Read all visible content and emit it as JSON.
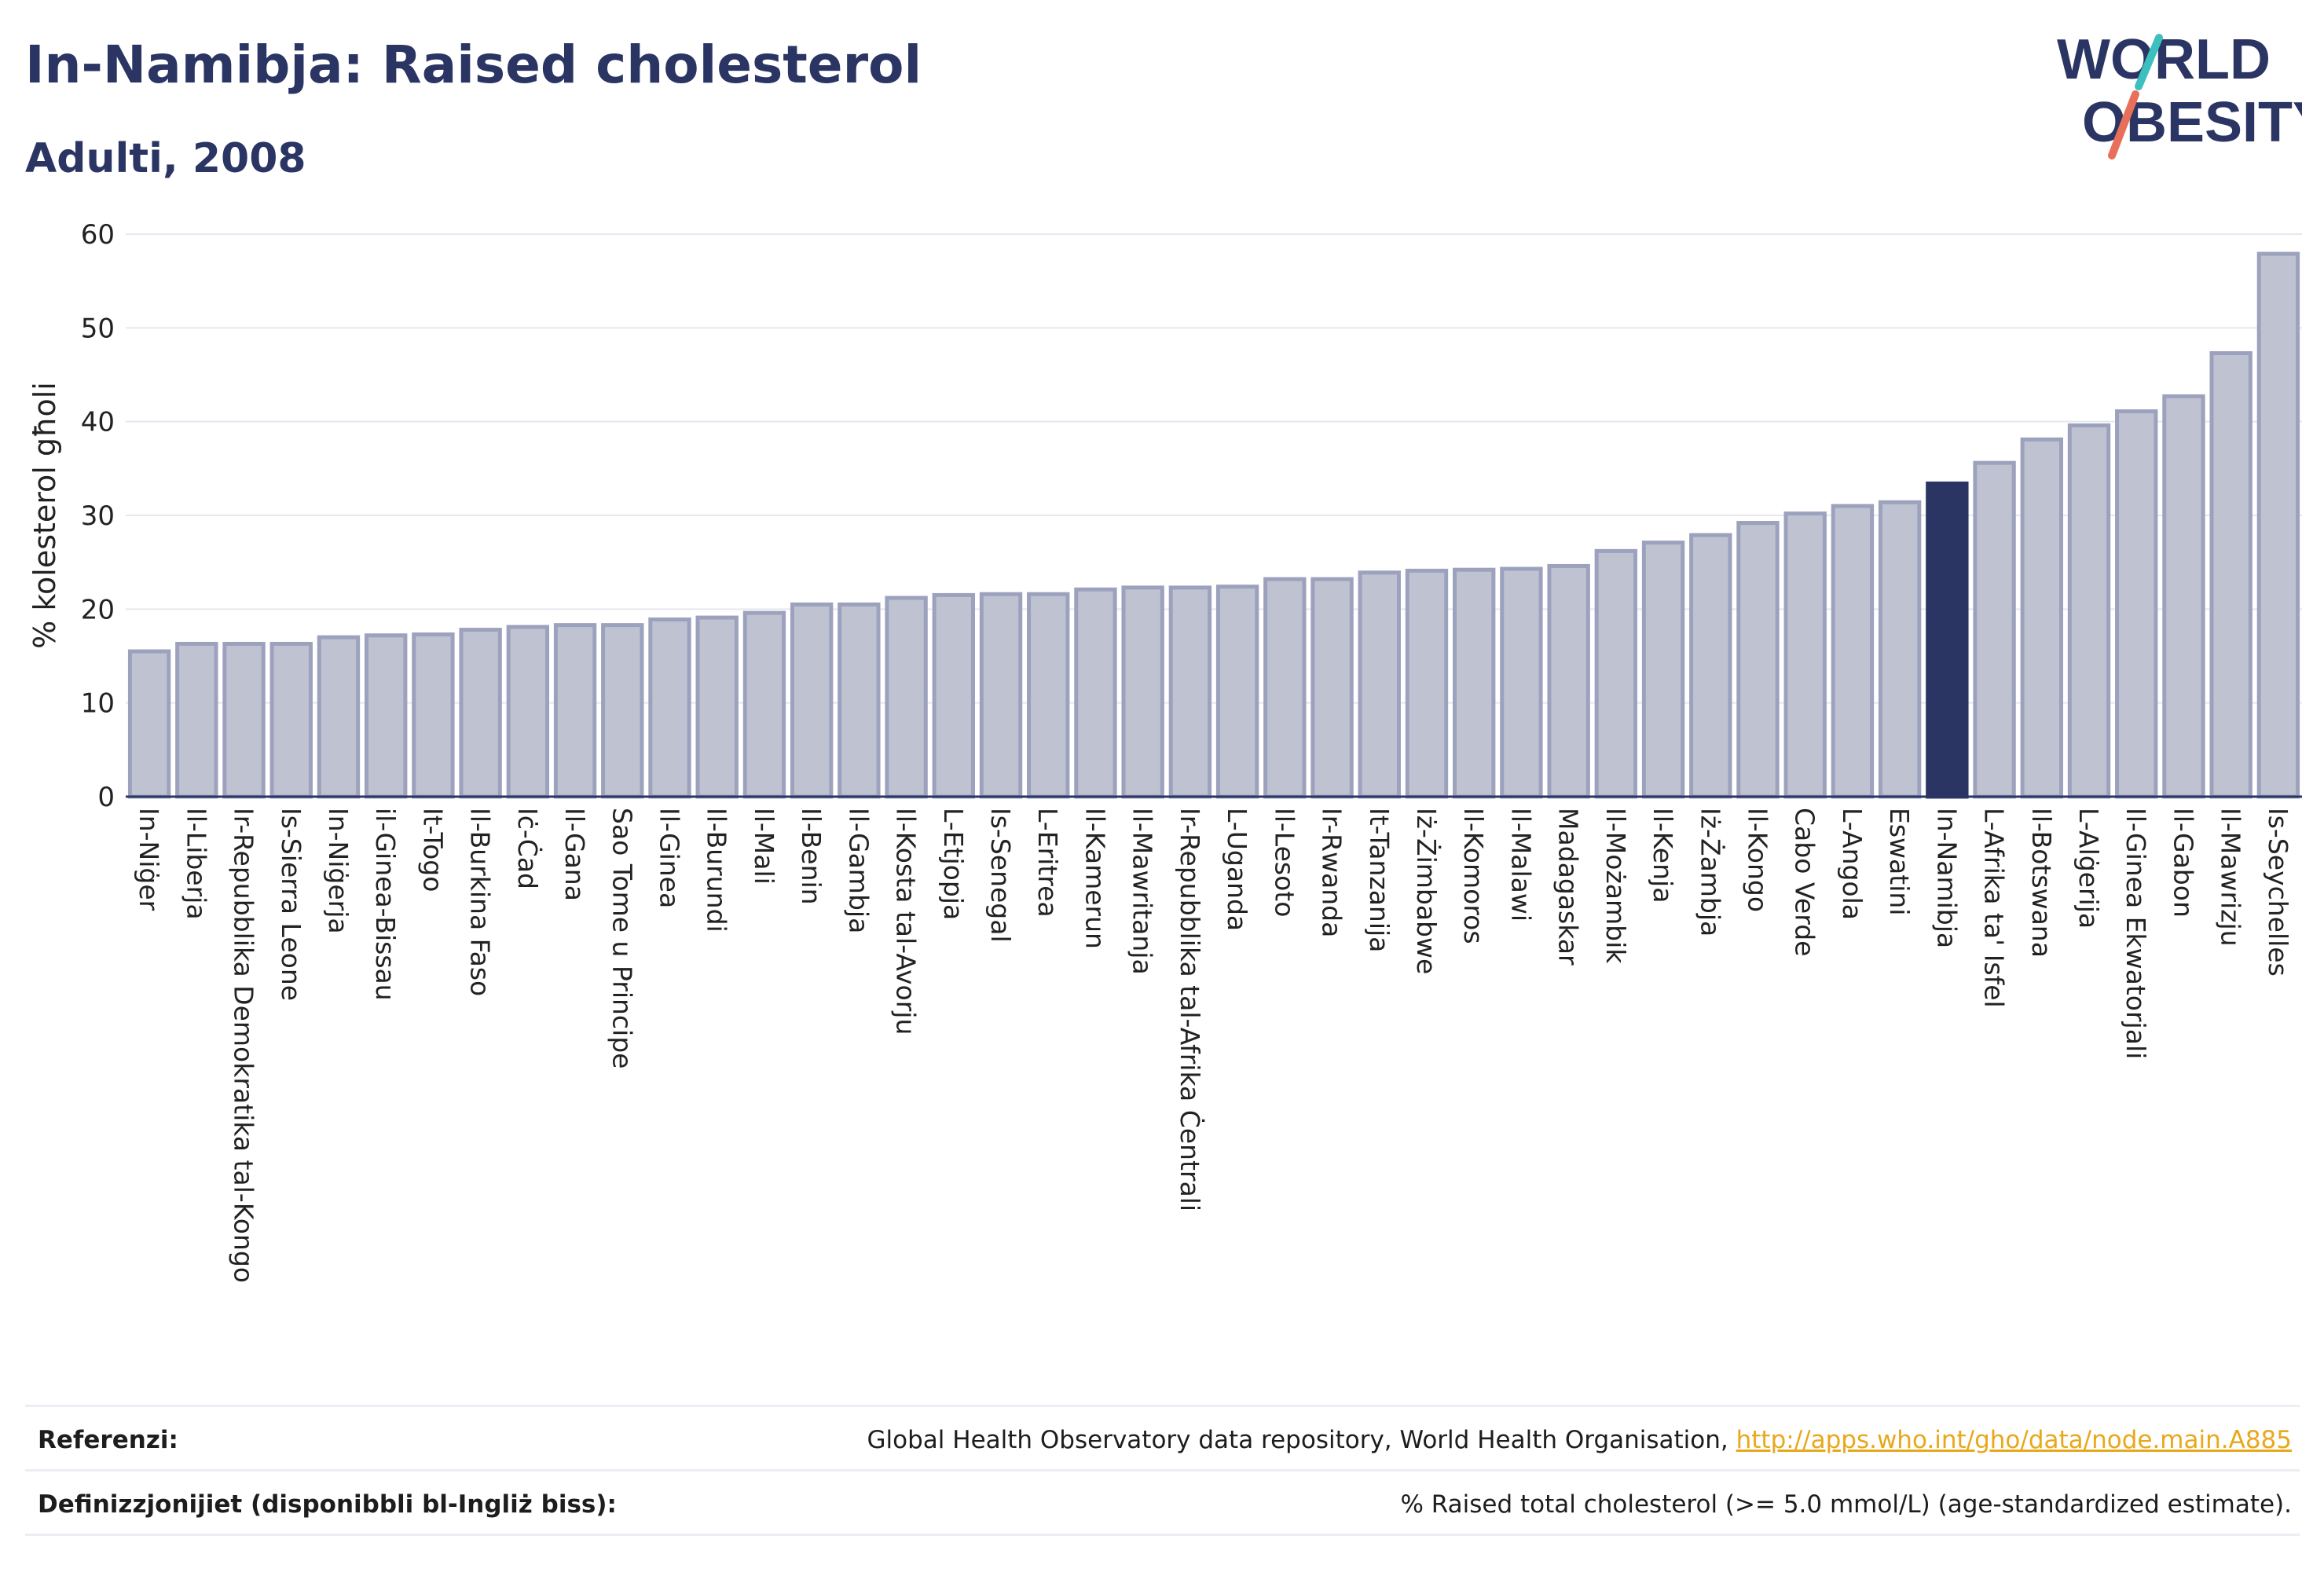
{
  "header": {
    "title": "In-Namibja: Raised cholesterol",
    "subtitle": "Adulti, 2008"
  },
  "logo": {
    "line1": "WORLD",
    "line2": "OBESITY",
    "colors": {
      "text": "#2b3563",
      "slash_top": "#3dbfbf",
      "slash_bottom": "#e8705a"
    }
  },
  "chart_data": {
    "type": "bar",
    "ylabel": "% kolesterol għoli",
    "xlabel": "",
    "ylim": [
      0,
      60
    ],
    "yticks": [
      0,
      10,
      20,
      30,
      40,
      50,
      60
    ],
    "grid": true,
    "highlight": "In-Namibja",
    "colors": {
      "bar": "#bfc2d1",
      "bar_edge": "#9ca2bd",
      "highlight": "#2b3563"
    },
    "categories": [
      "In-Niġer",
      "Il-Liberja",
      "Ir-Repubblika Demokratika tal-Kongo",
      "Is-Sierra Leone",
      "In-Niġerja",
      "il-Ginea-Bissau",
      "It-Togo",
      "Il-Burkina Faso",
      "Iċ-Ċad",
      "Il-Gana",
      "Sao Tome u Principe",
      "Il-Ginea",
      "Il-Burundi",
      "Il-Mali",
      "Il-Benin",
      "Il-Gambja",
      "Il-Kosta tal-Avorju",
      "L-Etjopja",
      "Is-Senegal",
      "L-Eritrea",
      "Il-Kamerun",
      "Il-Mawritanja",
      "Ir-Repubblika tal-Afrika Ċentrali",
      "L-Uganda",
      "Il-Lesoto",
      "Ir-Rwanda",
      "It-Tanzanija",
      "Iż-Żimbabwe",
      "Il-Komoros",
      "Il-Malawi",
      "Madagaskar",
      "Il-Możambik",
      "Il-Kenja",
      "Iż-Żambja",
      "Il-Kongo",
      "Cabo Verde",
      "L-Angola",
      "Eswatini",
      "In-Namibja",
      "L-Afrika ta' Isfel",
      "Il-Botswana",
      "L-Alġerija",
      "Il-Ginea Ekwatorjali",
      "Il-Gabon",
      "Il-Mawrizju",
      "Is-Seychelles"
    ],
    "values": [
      15.5,
      16.3,
      16.3,
      16.3,
      17.0,
      17.2,
      17.3,
      17.8,
      18.1,
      18.3,
      18.3,
      18.9,
      19.1,
      19.6,
      20.5,
      20.5,
      21.2,
      21.5,
      21.6,
      21.6,
      22.1,
      22.3,
      22.3,
      22.4,
      23.2,
      23.2,
      23.9,
      24.1,
      24.2,
      24.3,
      24.6,
      26.2,
      27.1,
      27.9,
      29.2,
      30.2,
      31.0,
      31.4,
      33.4,
      35.6,
      38.1,
      39.6,
      41.1,
      42.7,
      47.3,
      57.9
    ]
  },
  "footer": {
    "references_label": "Referenzi:",
    "references_text": "Global Health Observatory data repository, World Health Organisation, ",
    "references_link": "http://apps.who.int/gho/data/node.main.A885",
    "definitions_label": "Definizzjonijiet (disponibbli bl-Ingliż biss):",
    "definitions_text": "% Raised total cholesterol (>= 5.0 mmol/L) (age-standardized estimate)."
  }
}
